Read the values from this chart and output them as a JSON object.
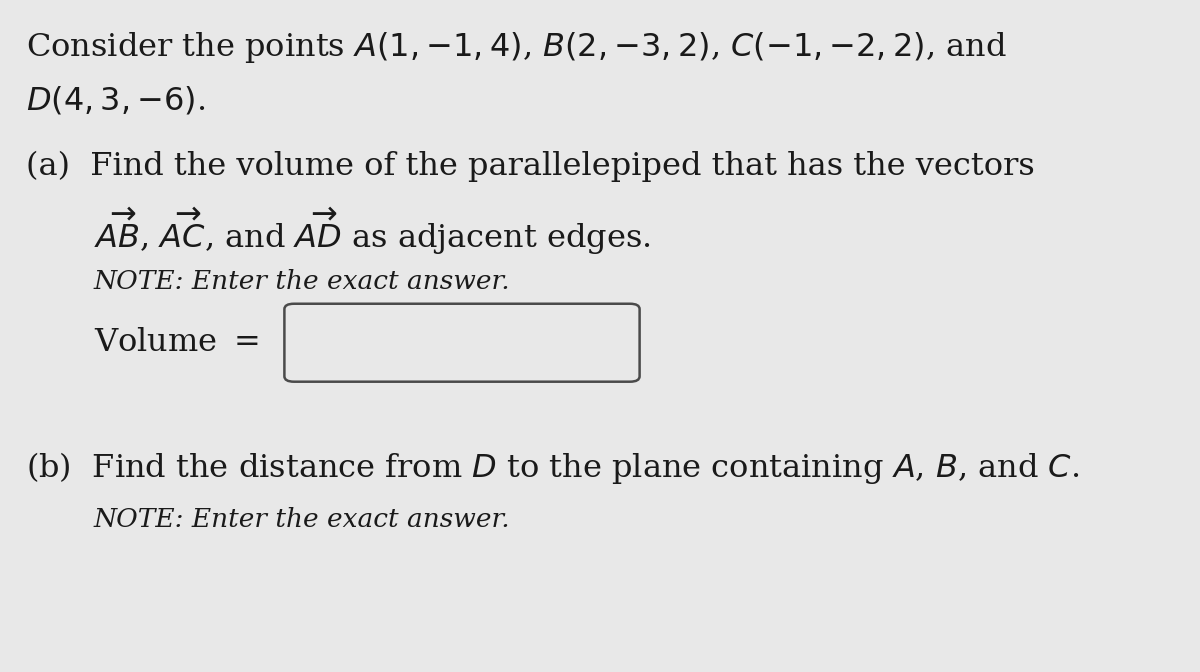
{
  "bg_color": "#e8e8e8",
  "text_color": "#1a1a1a",
  "line1": "Consider the points $A(1, {-}1, 4)$, $B(2, {-}3, 2)$, $C({-}1, {-}2, 2)$, and",
  "line2": "$D(4, 3, {-}6)$.",
  "line3": "(a)  Find the volume of the parallelepiped that has the vectors",
  "line4": "$\\overline{AB}\\!\\!\\vec{\\phantom{X}}$, $\\overline{AC}\\!\\!\\vec{\\phantom{X}}$, and $\\overline{AD}\\!\\!\\vec{\\phantom{XX}}$ as adjacent edges.",
  "line4b": "$\\vec{AB}$, $\\vec{AC}$, and $\\vec{AD}$ as adjacent edges.",
  "note_a": "NOTE: Enter the exact answer.",
  "volume_label": "Volume $=$",
  "line5": "(b)  Find the distance from $D$ to the plane containing $A$, $B$, and $C$.",
  "note_b": "NOTE: Enter the exact answer.",
  "fs_main": 23,
  "fs_note": 19,
  "box_color": "#d0d0d0"
}
